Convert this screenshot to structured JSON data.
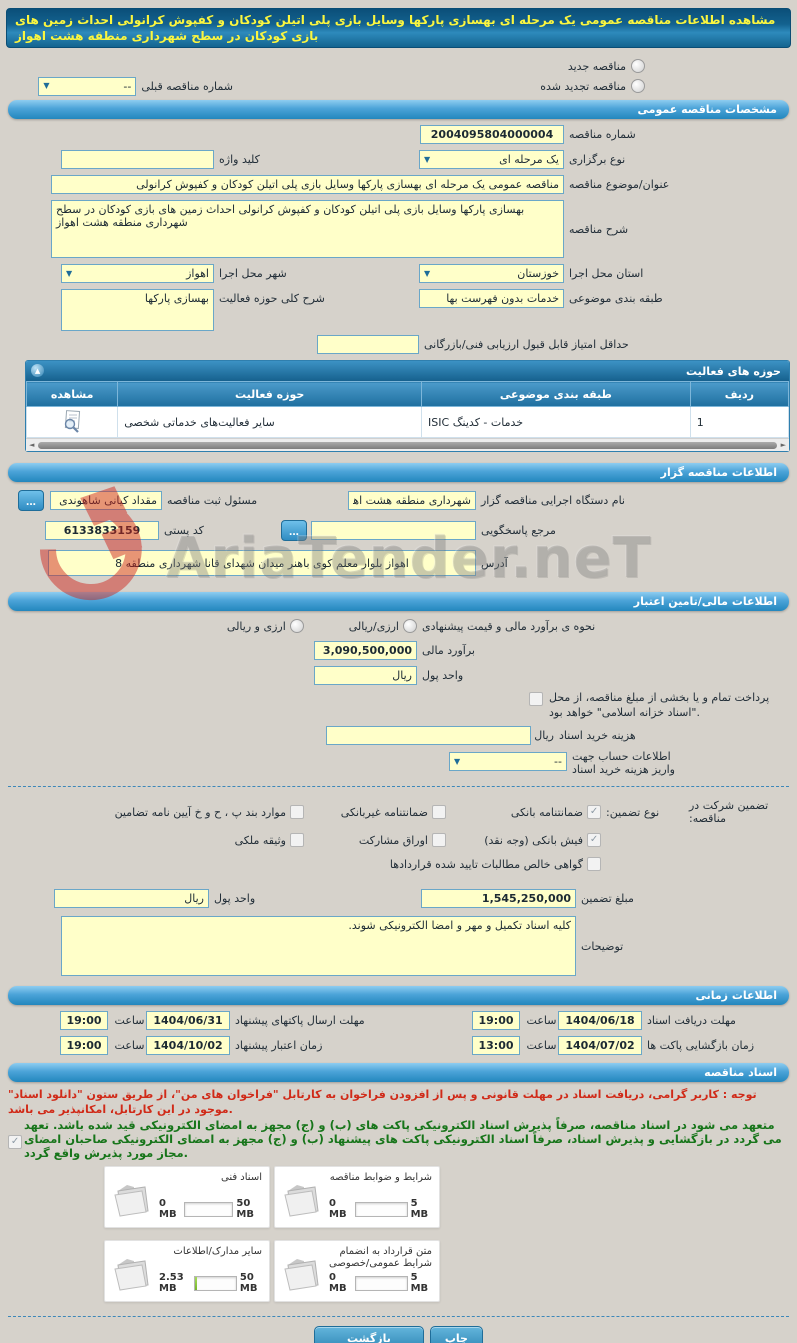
{
  "page_title": "مشاهده اطلاعات مناقصه عمومی یک مرحله ای بهسازی پارکها وسایل بازی پلی اتیلن کودکان و کفپوش کرانولی احداث زمین های بازی کودکان در سطح شهرداری منطقه هشت اهواز",
  "header": {
    "new_tender": "مناقصه جدید",
    "renewed_tender": "مناقصه تجدید شده",
    "previous_tender_label": "شماره مناقصه قبلی",
    "previous_tender_value": "--"
  },
  "section_titles": {
    "general": "مشخصات مناقصه عمومی",
    "activity": "حوزه های فعالیت",
    "agency": "اطلاعات مناقصه گزار",
    "financial": "اطلاعات مالی/تامین اعتبار",
    "timing": "اطلاعات زمانی",
    "documents": "اسناد مناقصه"
  },
  "general": {
    "tender_number": {
      "label": "شماره مناقصه",
      "value": "2004095804000004"
    },
    "process_type": {
      "label": "نوع برگزاری",
      "value": "یک مرحله ای"
    },
    "keyword": {
      "label": "کلید واژه",
      "value": ""
    },
    "subject": {
      "label": "عنوان/موضوع مناقصه",
      "value": "مناقصه عمومی یک مرحله ای بهسازی پارکها وسایل بازی پلی اتیلن کودکان و کفپوش کرانولی"
    },
    "description": {
      "label": "شرح مناقصه",
      "value": "بهسازی پارکها وسایل بازی پلی اتیلن کودکان و کفپوش کرانولی احداث زمین های بازی کودکان در سطح شهرداری منطقه هشت اهواز"
    },
    "province": {
      "label": "استان محل اجرا",
      "value": "خوزستان"
    },
    "city": {
      "label": "شهر محل اجرا",
      "value": "اهواز"
    },
    "category": {
      "label": "طبقه بندی موضوعی",
      "value": "خدمات بدون فهرست بها"
    },
    "activity_scope": {
      "label": "شرح کلی حوزه فعالیت",
      "value": "بهسازی پارکها"
    },
    "min_score": {
      "label": "حداقل امتیاز قابل قبول ارزیابی فنی/بازرگانی",
      "value": ""
    }
  },
  "activity_table": {
    "headers": {
      "row": "ردیف",
      "category": "طبقه بندی موضوعی",
      "field": "حوزه فعالیت",
      "view": "مشاهده"
    },
    "rows": [
      {
        "row": "1",
        "category": "خدمات - کدینگ ISIC",
        "field": "سایر فعالیت‌های خدماتی شخصی"
      }
    ]
  },
  "agency": {
    "org": {
      "label": "نام دستگاه اجرایی مناقصه گزار",
      "value": "شهرداری منطقه هشت اهواز"
    },
    "registrar": {
      "label": "مسئول ثبت مناقصه",
      "value": "مقداد کیانی شاهوندی"
    },
    "contact": {
      "label": "مرجع پاسخگویی",
      "value": ""
    },
    "postal_code": {
      "label": "کد پستی",
      "value": "6133833159"
    },
    "address": {
      "label": "آدرس",
      "value": "اهواز بلوار معلم کوی باهنر میدان شهدای قانا شهرداری منطقه 8"
    },
    "browse_button": "..."
  },
  "financial": {
    "estimate_method": {
      "label": "نحوه ی برآورد مالی و قیمت پیشنهادی",
      "option1": "ارزی/ریالی",
      "option2": "ارزی و ریالی"
    },
    "estimate": {
      "label": "برآورد مالی",
      "value": "3,090,500,000"
    },
    "currency": {
      "label": "واحد پول",
      "value": "ریال"
    },
    "treasury_note": "پرداخت تمام و یا بخشی از مبلغ مناقصه، از محل \"اسناد خزانه اسلامی\" خواهد بود.",
    "doc_fee": {
      "label": "هزینه خرید اسناد",
      "unit": "ریال",
      "value": ""
    },
    "account_info": {
      "label": "اطلاعات حساب جهت واریز هزینه خرید اسناد",
      "value": "--"
    }
  },
  "guarantee": {
    "section_label": "تضمین شرکت در مناقصه:",
    "type_label": "نوع تضمین:",
    "options": [
      {
        "label": "ضمانتنامه بانکی",
        "checked": "✓"
      },
      {
        "label": "فیش بانکی (وجه نقد)",
        "checked": "✓"
      },
      {
        "label": "گواهی خالص مطالبات تایید شده قراردادها",
        "checked": ""
      },
      {
        "label": "ضمانتنامه غیربانکی",
        "checked": ""
      },
      {
        "label": "اوراق مشارکت",
        "checked": ""
      },
      {
        "label": "موارد بند پ ، ح و خ آیین نامه تضامین",
        "checked": ""
      },
      {
        "label": "وثیقه ملکی",
        "checked": ""
      }
    ],
    "amount": {
      "label": "مبلغ تضمین",
      "value": "1,545,250,000"
    },
    "currency": {
      "label": "واحد پول",
      "value": "ریال"
    },
    "notes": {
      "label": "توضیحات",
      "value": "کلیه اسناد تکمیل و مهر و امضا الکترونیکی شوند."
    }
  },
  "timing": {
    "doc_deadline": {
      "label": "مهلت دریافت اسناد",
      "date": "1404/06/18",
      "time_label": "ساعت",
      "time": "19:00"
    },
    "submit_deadline": {
      "label": "مهلت ارسال پاکتهای پیشنهاد",
      "date": "1404/06/31",
      "time_label": "ساعت",
      "time": "19:00"
    },
    "opening_time": {
      "label": "زمان بازگشایی پاکت ها",
      "date": "1404/07/02",
      "time_label": "ساعت",
      "time": "13:00"
    },
    "validity_time": {
      "label": "زمان اعتبار پیشنهاد",
      "date": "1404/10/02",
      "time_label": "ساعت",
      "time": "19:00"
    }
  },
  "documents": {
    "notice": "توجه : کاربر گرامی، دریافت اسناد در مهلت قانونی و پس از افزودن فراخوان به کارتابل \"فراخوان های من\"، از طریق ستون \"دانلود اسناد\" موجود در این کارتابل، امکانپذیر می باشد.",
    "commitment": "متعهد می شود در اسناد مناقصه، صرفاً پذیرش اسناد الکترونیکی پاکت های (ب) و (ج) مجهز به امضای الکترونیکی قید شده باشد. تعهد می گردد در بازگشایی و پذیرش اسناد، صرفاً اسناد الکترونیکی پاکت های پیشنهاد (ب) و (ج) مجهز به امضای الکترونیکی صاحبان امضای مجاز مورد پذیرش واقع گردد.",
    "commitment_checked": "✓",
    "cards": [
      {
        "label": "شرایط و ضوابط مناقصه",
        "current": "0 MB",
        "max": "5 MB",
        "fill_pct": 0
      },
      {
        "label": "اسناد فنی",
        "current": "0 MB",
        "max": "50 MB",
        "fill_pct": 0
      },
      {
        "label": "متن قرارداد به انضمام شرایط عمومی/خصوصی",
        "current": "0 MB",
        "max": "5 MB",
        "fill_pct": 0
      },
      {
        "label": "سایر مدارک/اطلاعات",
        "current": "2.53 MB",
        "max": "50 MB",
        "fill_pct": 6
      }
    ]
  },
  "footer": {
    "print_button": "چاپ",
    "back_button": "بازگشت"
  },
  "watermark": {
    "text": "AriaTender.neT"
  }
}
